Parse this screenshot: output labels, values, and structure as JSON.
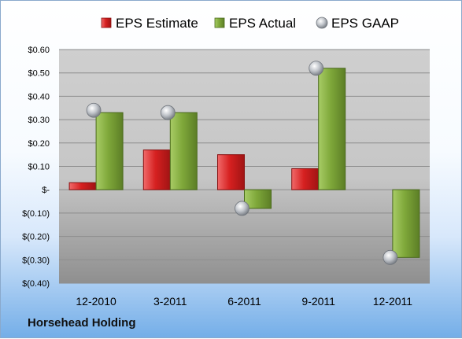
{
  "company": "Horsehead Holding",
  "chart_data": {
    "type": "bar",
    "categories": [
      "12-2010",
      "3-2011",
      "6-2011",
      "9-2011",
      "12-2011"
    ],
    "series": [
      {
        "name": "EPS Estimate",
        "kind": "bar",
        "color": "#d32a2a",
        "values": [
          0.03,
          0.17,
          0.15,
          0.09,
          null
        ]
      },
      {
        "name": "EPS Actual",
        "kind": "bar",
        "color": "#7fa83a",
        "values": [
          0.33,
          0.33,
          -0.08,
          0.52,
          -0.29
        ]
      },
      {
        "name": "EPS GAAP",
        "kind": "marker",
        "color": "#b8bcc4",
        "values": [
          0.34,
          0.33,
          -0.08,
          0.52,
          -0.29
        ]
      }
    ],
    "ylim": [
      -0.4,
      0.6
    ],
    "yticks": [
      0.6,
      0.5,
      0.4,
      0.3,
      0.2,
      0.1,
      0.0,
      -0.1,
      -0.2,
      -0.3,
      -0.4
    ],
    "ytick_labels": [
      "$0.60",
      "$0.50",
      "$0.40",
      "$0.30",
      "$0.20",
      "$0.10",
      "$-",
      "$(0.10)",
      "$(0.20)",
      "$(0.30)",
      "$(0.40)"
    ],
    "grid": true,
    "legend_position": "top"
  }
}
